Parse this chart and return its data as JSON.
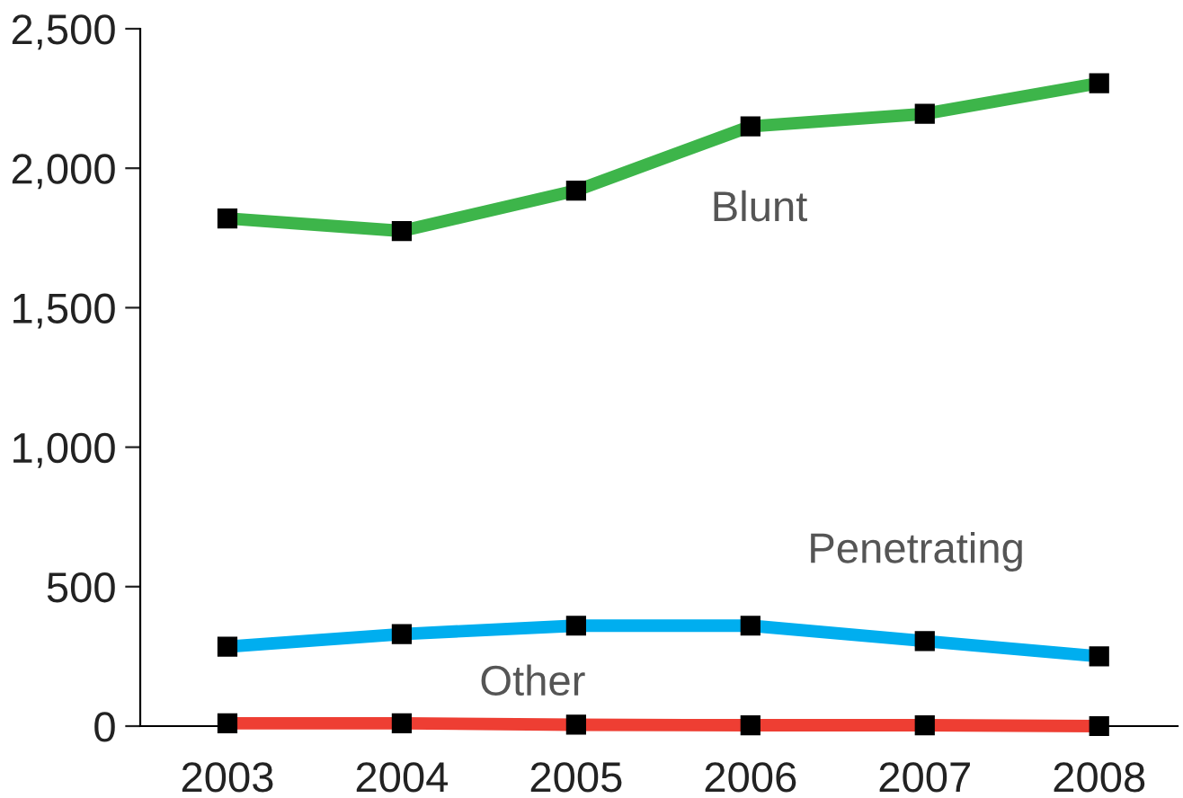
{
  "chart_data": {
    "type": "line",
    "categories": [
      "2003",
      "2004",
      "2005",
      "2006",
      "2007",
      "2008"
    ],
    "series": [
      {
        "name": "Blunt",
        "color": "#3db54a",
        "values": [
          1820,
          1775,
          1920,
          2150,
          2195,
          2305
        ]
      },
      {
        "name": "Penetrating",
        "color": "#00aeef",
        "values": [
          285,
          330,
          360,
          360,
          305,
          250
        ]
      },
      {
        "name": "Other",
        "color": "#ee3e33",
        "values": [
          10,
          10,
          5,
          3,
          3,
          0
        ]
      }
    ],
    "ylim": [
      0,
      2500
    ],
    "yticks": [
      {
        "value": 0,
        "label": "0"
      },
      {
        "value": 500,
        "label": "500"
      },
      {
        "value": 1000,
        "label": "1,000"
      },
      {
        "value": 1500,
        "label": "1,500"
      },
      {
        "value": 2000,
        "label": "2,000"
      },
      {
        "value": 2500,
        "label": "2,500"
      }
    ],
    "grid": false,
    "legend": false,
    "marker": "square",
    "line_style": "solid"
  }
}
